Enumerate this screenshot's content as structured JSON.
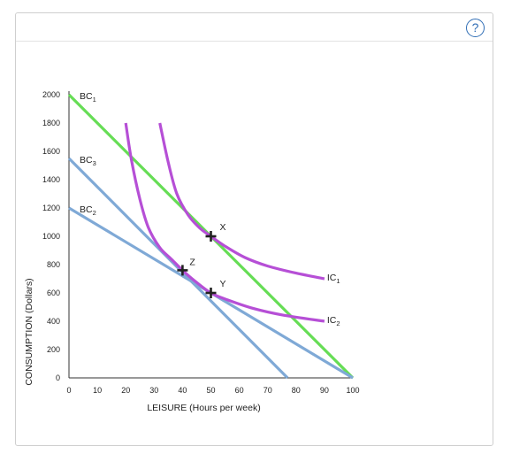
{
  "help": {
    "label": "?"
  },
  "chart_data": {
    "type": "line",
    "xlabel": "LEISURE (Hours per week)",
    "ylabel": "CONSUMPTION (Dollars)",
    "xlim": [
      0,
      100
    ],
    "ylim": [
      0,
      2000
    ],
    "x_ticks": [
      0,
      10,
      20,
      30,
      40,
      50,
      60,
      70,
      80,
      90,
      100
    ],
    "y_ticks": [
      0,
      200,
      400,
      600,
      800,
      1000,
      1200,
      1400,
      1600,
      1800,
      2000
    ],
    "grid": false,
    "lines": [
      {
        "id": "bc1",
        "label_main": "BC",
        "label_sub": "1",
        "color": "#66dd55",
        "points": [
          [
            0,
            2000
          ],
          [
            100,
            0
          ]
        ]
      },
      {
        "id": "bc3",
        "label_main": "BC",
        "label_sub": "3",
        "color": "#7fa9d6",
        "points": [
          [
            0,
            1550
          ],
          [
            77,
            0
          ]
        ]
      },
      {
        "id": "bc2",
        "label_main": "BC",
        "label_sub": "2",
        "color": "#7fa9d6",
        "points": [
          [
            0,
            1200
          ],
          [
            100,
            0
          ]
        ]
      }
    ],
    "curves": [
      {
        "id": "ic1",
        "label_main": "IC",
        "label_sub": "1",
        "color": "#b64fd6",
        "points": [
          [
            32,
            1800
          ],
          [
            35,
            1520
          ],
          [
            38,
            1300
          ],
          [
            42,
            1150
          ],
          [
            46,
            1060
          ],
          [
            50,
            1000
          ],
          [
            55,
            930
          ],
          [
            62,
            850
          ],
          [
            70,
            790
          ],
          [
            80,
            740
          ],
          [
            90,
            700
          ]
        ]
      },
      {
        "id": "ic2",
        "label_main": "IC",
        "label_sub": "2",
        "color": "#b64fd6",
        "points": [
          [
            20,
            1800
          ],
          [
            22,
            1540
          ],
          [
            25,
            1260
          ],
          [
            28,
            1060
          ],
          [
            32,
            920
          ],
          [
            36,
            840
          ],
          [
            40,
            760
          ],
          [
            44,
            690
          ],
          [
            50,
            600
          ],
          [
            56,
            550
          ],
          [
            65,
            490
          ],
          [
            75,
            445
          ],
          [
            90,
            400
          ]
        ]
      }
    ],
    "markers": [
      {
        "id": "x",
        "label": "X",
        "x": 50,
        "y": 1000
      },
      {
        "id": "z",
        "label": "Z",
        "x": 40,
        "y": 760
      },
      {
        "id": "y",
        "label": "Y",
        "x": 50,
        "y": 600
      }
    ]
  }
}
